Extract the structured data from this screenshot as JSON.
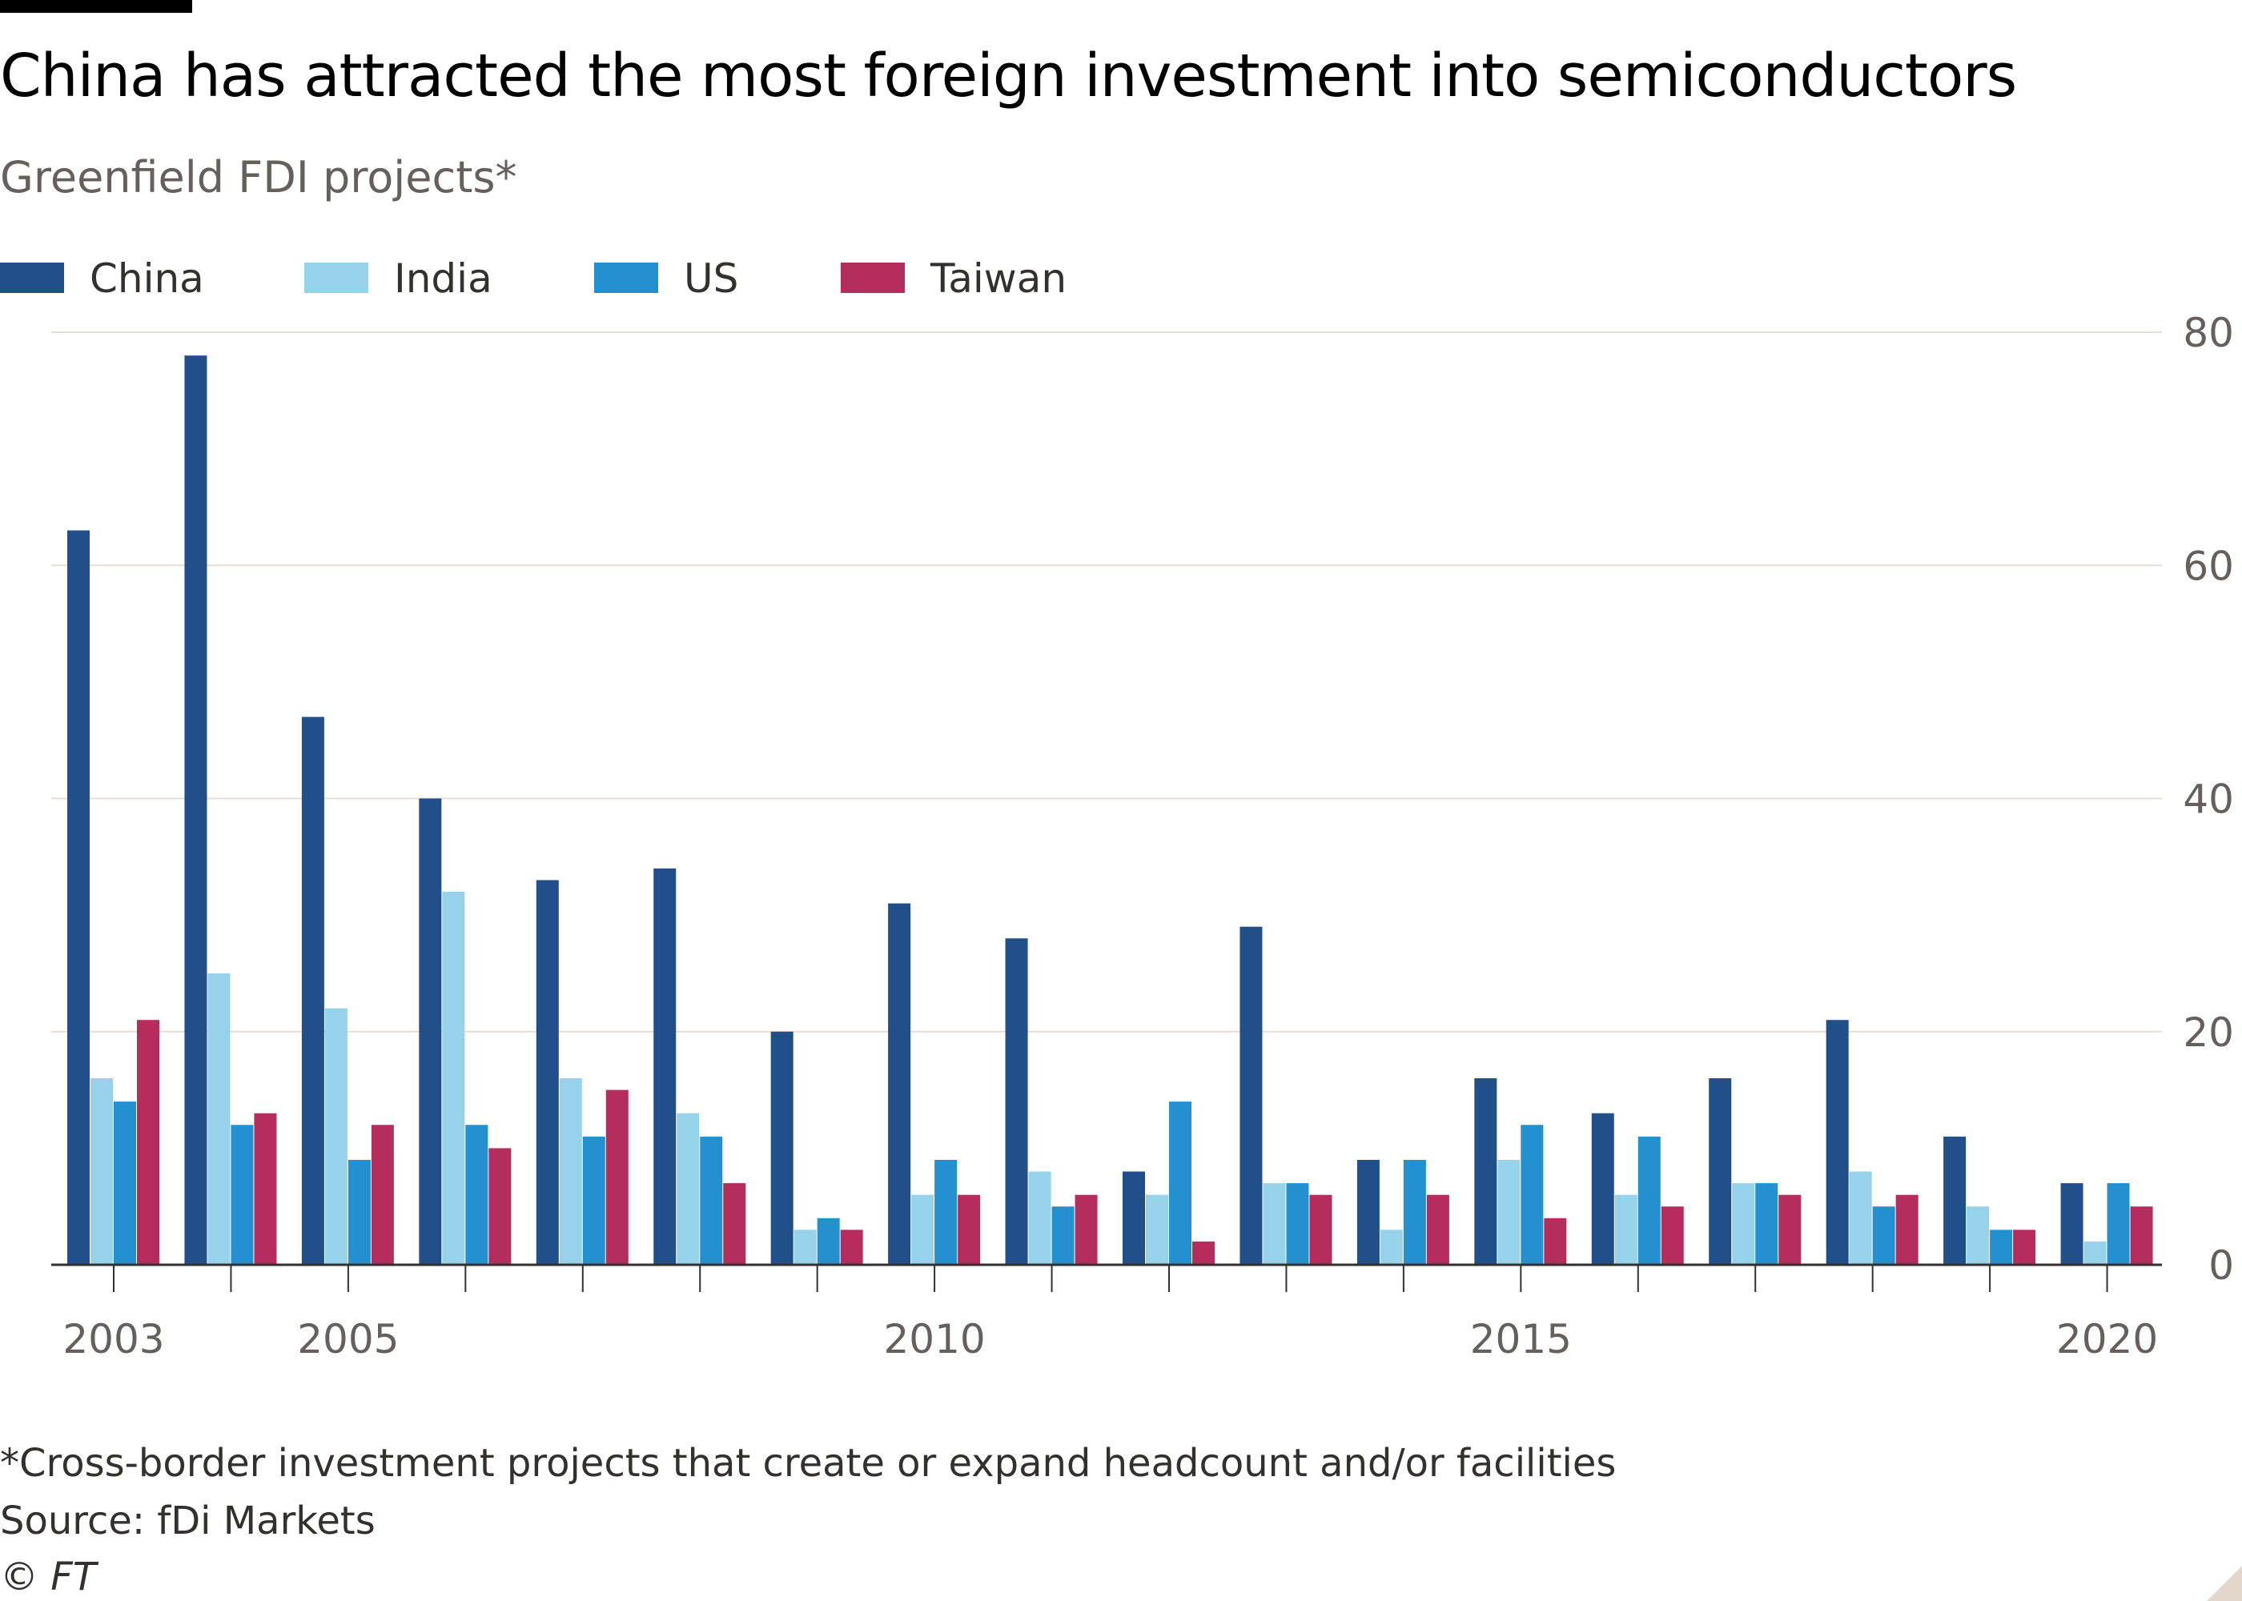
{
  "title": "China has attracted the most foreign investment into semiconductors",
  "subtitle": "Greenfield FDI projects*",
  "footnote": "*Cross-border investment projects that create or expand headcount and/or facilities",
  "source": "Source: fDi Markets",
  "copyright": "© FT",
  "colors": {
    "China": "#204f8a",
    "India": "#96d3ea",
    "US": "#2490d0",
    "Taiwan": "#b52d5d",
    "grid": "#e6ddd3",
    "axis": "#33302e"
  },
  "chart_data": {
    "type": "bar",
    "x": [
      2003,
      2004,
      2005,
      2006,
      2007,
      2008,
      2009,
      2010,
      2011,
      2012,
      2013,
      2014,
      2015,
      2016,
      2017,
      2018,
      2019,
      2020
    ],
    "xtick_labels": [
      "2003",
      "2005",
      "2010",
      "2015",
      "2020"
    ],
    "series": [
      {
        "name": "China",
        "color": "#204f8a",
        "values": [
          63,
          78,
          47,
          40,
          33,
          34,
          20,
          31,
          28,
          8,
          29,
          9,
          16,
          13,
          16,
          21,
          11,
          7
        ]
      },
      {
        "name": "India",
        "color": "#96d3ea",
        "values": [
          16,
          25,
          22,
          32,
          16,
          13,
          3,
          6,
          8,
          6,
          7,
          3,
          9,
          6,
          7,
          8,
          5,
          2
        ]
      },
      {
        "name": "US",
        "color": "#2490d0",
        "values": [
          14,
          12,
          9,
          12,
          11,
          11,
          4,
          9,
          5,
          14,
          7,
          9,
          12,
          11,
          7,
          5,
          3,
          7
        ]
      },
      {
        "name": "Taiwan",
        "color": "#b52d5d",
        "values": [
          21,
          13,
          12,
          10,
          15,
          7,
          3,
          6,
          6,
          2,
          6,
          6,
          4,
          5,
          6,
          6,
          3,
          5
        ]
      }
    ],
    "yticks": [
      0,
      20,
      40,
      60,
      80
    ],
    "ylim": [
      0,
      80
    ],
    "y_axis_side": "right",
    "grid": true,
    "legend": "top-left"
  }
}
